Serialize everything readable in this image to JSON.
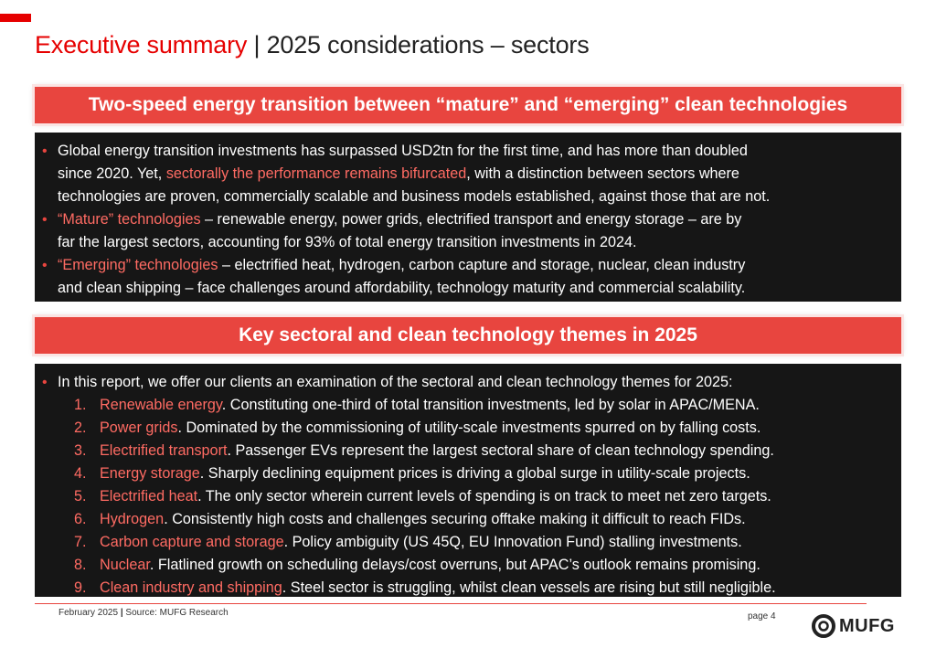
{
  "header": {
    "title_red": "Executive summary",
    "title_sep": " | ",
    "title_rest": "2025 considerations – sectors"
  },
  "section1": {
    "heading": "Two-speed energy transition between “mature” and “emerging” clean technologies",
    "bullets": [
      {
        "line1_a": "Global energy transition investments has surpassed USD2tn for the first time, and has more than doubled",
        "line2_a": "since 2020. Yet, ",
        "line2_hl": "sectorally the performance remains bifurcated",
        "line2_b": ", with a distinction between sectors where",
        "line3": "technologies are proven, commercially scalable and business models established, against those that are not."
      },
      {
        "hl": "“Mature” technologies",
        "line1_b": " – renewable energy, power grids, electrified transport and energy storage – are by",
        "line2": "far the largest sectors, accounting for 93% of total energy transition investments in 2024."
      },
      {
        "hl": "“Emerging” technologies",
        "line1_b": " – electrified heat, hydrogen, carbon capture and storage, nuclear,  clean industry",
        "line2": "and clean shipping – face challenges around affordability, technology maturity and commercial scalability."
      }
    ]
  },
  "section2": {
    "heading": "Key sectoral and clean technology themes in 2025",
    "intro": "In this report, we offer our clients an examination of the sectoral and clean technology themes for 2025:",
    "themes": [
      {
        "num": "1.",
        "name": "Renewable energy",
        "desc": ". Constituting one-third of total transition investments, led by solar in APAC/MENA."
      },
      {
        "num": "2.",
        "name": "Power grids",
        "desc": ". Dominated by the commissioning of utility-scale investments spurred on by falling costs."
      },
      {
        "num": "3.",
        "name": "Electrified transport",
        "desc": ". Passenger EVs represent the largest sectoral share of clean technology spending."
      },
      {
        "num": "4.",
        "name": "Energy storage",
        "desc": ". Sharply declining equipment prices is driving a global surge in utility-scale projects."
      },
      {
        "num": "5.",
        "name": "Electrified heat",
        "desc": ". The only sector wherein current levels of spending is on track to meet net zero targets."
      },
      {
        "num": "6.",
        "name": "Hydrogen",
        "desc": ". Consistently high costs and challenges securing offtake making it difficult to reach FIDs."
      },
      {
        "num": "7.",
        "name": "Carbon capture and storage",
        "desc": ". Policy ambiguity (US 45Q, EU Innovation Fund) stalling investments."
      },
      {
        "num": "8.",
        "name": "Nuclear",
        "desc": ". Flatlined growth on scheduling delays/cost overruns, but APAC’s outlook remains promising."
      },
      {
        "num": "9.",
        "name": "Clean industry and shipping",
        "desc": ". Steel sector is struggling, whilst clean vessels are rising but still negligible."
      }
    ]
  },
  "footer": {
    "date": "February 2025",
    "source": "Source: MUFG Research",
    "page": "page 4",
    "logo_text": "MUFG"
  },
  "colors": {
    "brand_red": "#e60000",
    "banner_red": "#e8453f",
    "highlight_red": "#ff6b63",
    "panel_bg": "#161616"
  }
}
